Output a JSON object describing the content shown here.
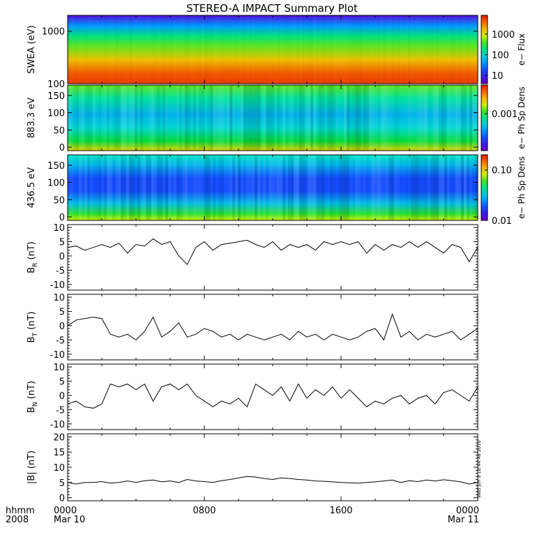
{
  "title": "STEREO-A IMPACT Summary Plot",
  "stamp": "Wed Jun  9 18:44:48 2010",
  "time_axis": {
    "labels": [
      "hhmm",
      "2008"
    ],
    "ticks": [
      {
        "hour": 0,
        "line1": "0000",
        "line2": "Mar 10"
      },
      {
        "hour": 8,
        "line1": "0800",
        "line2": ""
      },
      {
        "hour": 16,
        "line1": "1600",
        "line2": ""
      },
      {
        "hour": 24,
        "line1": "0000",
        "line2": "Mar 11"
      }
    ],
    "range_hours": [
      0,
      24
    ]
  },
  "spectrograms": [
    {
      "ylabel": "SWEA (eV)",
      "scale": "log",
      "ylim": [
        100,
        2000
      ],
      "ticks": [
        "100",
        "1000"
      ],
      "tick_values": [
        100,
        1000
      ],
      "colorbar": {
        "label": "e− Flux",
        "scale": "log",
        "ticks": [
          "10",
          "100",
          "1000"
        ],
        "tick_values": [
          10,
          100,
          1000
        ],
        "range": [
          4,
          8000
        ]
      }
    },
    {
      "ylabel": "883.3 eV",
      "scale": "linear",
      "ylim": [
        -10,
        180
      ],
      "ticks": [
        "0",
        "50",
        "100",
        "150"
      ],
      "tick_values": [
        0,
        50,
        100,
        150
      ],
      "colorbar": {
        "label": "e− Ph Sp Dens",
        "scale": "log",
        "ticks": [
          "0.001"
        ],
        "tick_values": [
          0.001
        ],
        "range": [
          0.0001,
          0.006
        ]
      }
    },
    {
      "ylabel": "436.5 eV",
      "scale": "linear",
      "ylim": [
        -10,
        180
      ],
      "ticks": [
        "0",
        "50",
        "100",
        "150"
      ],
      "tick_values": [
        0,
        50,
        100,
        150
      ],
      "colorbar": {
        "label": "e− Ph Sp Dens",
        "scale": "log",
        "ticks": [
          "0.01",
          "0.10"
        ],
        "tick_values": [
          0.01,
          0.1
        ],
        "range": [
          0.01,
          0.2
        ]
      }
    }
  ],
  "chart_data": [
    {
      "type": "line",
      "ylabel": "B_R (nT)",
      "ylabel_main": "B",
      "ylabel_sub": "R",
      "ylabel_unit": "(nT)",
      "ylim": [
        -12,
        11
      ],
      "yticks": [
        -10,
        -5,
        0,
        5,
        10
      ],
      "x_hours": [
        0,
        0.5,
        1,
        1.5,
        2,
        2.5,
        3,
        3.5,
        4,
        4.5,
        5,
        5.5,
        6,
        6.5,
        7,
        7.5,
        8,
        8.5,
        9,
        9.5,
        10,
        10.5,
        11,
        11.5,
        12,
        12.5,
        13,
        13.5,
        14,
        14.5,
        15,
        15.5,
        16,
        16.5,
        17,
        17.5,
        18,
        18.5,
        19,
        19.5,
        20,
        20.5,
        21,
        21.5,
        22,
        22.5,
        23,
        23.5,
        24
      ],
      "y": [
        3,
        3.5,
        2,
        3,
        4,
        3,
        4.5,
        1,
        4,
        3.5,
        6,
        4,
        5,
        0,
        -3,
        3,
        5,
        2,
        4,
        4.5,
        5,
        5.5,
        4,
        3,
        5,
        2,
        4,
        3,
        4,
        2,
        5,
        4,
        5,
        4,
        5,
        1,
        4,
        2,
        4,
        3,
        5,
        3,
        5,
        3,
        1,
        4,
        3,
        -2,
        3
      ]
    },
    {
      "type": "line",
      "ylabel": "B_T (nT)",
      "ylabel_main": "B",
      "ylabel_sub": "T",
      "ylabel_unit": "(nT)",
      "ylim": [
        -12,
        11
      ],
      "yticks": [
        -10,
        -5,
        0,
        5,
        10
      ],
      "x_hours": [
        0,
        0.5,
        1,
        1.5,
        2,
        2.5,
        3,
        3.5,
        4,
        4.5,
        5,
        5.5,
        6,
        6.5,
        7,
        7.5,
        8,
        8.5,
        9,
        9.5,
        10,
        10.5,
        11,
        11.5,
        12,
        12.5,
        13,
        13.5,
        14,
        14.5,
        15,
        15.5,
        16,
        16.5,
        17,
        17.5,
        18,
        18.5,
        19,
        19.5,
        20,
        20.5,
        21,
        21.5,
        22,
        22.5,
        23,
        23.5,
        24
      ],
      "y": [
        0,
        2,
        2.5,
        3,
        2.5,
        -3,
        -4,
        -3,
        -5,
        -2,
        3,
        -4,
        -2,
        1,
        -4,
        -3,
        -1,
        -2,
        -4,
        -3,
        -5,
        -3,
        -4,
        -5,
        -4,
        -3,
        -5,
        -2,
        -4,
        -3,
        -5,
        -3,
        -4,
        -5,
        -4,
        -2,
        -1,
        -5,
        4,
        -4,
        -2,
        -5,
        -3,
        -4,
        -3,
        -2,
        -5,
        -3,
        -1
      ]
    },
    {
      "type": "line",
      "ylabel": "B_N (nT)",
      "ylabel_main": "B",
      "ylabel_sub": "N",
      "ylabel_unit": "(nT)",
      "ylim": [
        -12,
        11
      ],
      "yticks": [
        -10,
        -5,
        0,
        5,
        10
      ],
      "x_hours": [
        0,
        0.5,
        1,
        1.5,
        2,
        2.5,
        3,
        3.5,
        4,
        4.5,
        5,
        5.5,
        6,
        6.5,
        7,
        7.5,
        8,
        8.5,
        9,
        9.5,
        10,
        10.5,
        11,
        11.5,
        12,
        12.5,
        13,
        13.5,
        14,
        14.5,
        15,
        15.5,
        16,
        16.5,
        17,
        17.5,
        18,
        18.5,
        19,
        19.5,
        20,
        20.5,
        21,
        21.5,
        22,
        22.5,
        23,
        23.5,
        24
      ],
      "y": [
        -3,
        -2,
        -4,
        -4.5,
        -3,
        4,
        3,
        4,
        2,
        4,
        -2,
        3,
        4,
        2,
        4,
        0,
        -2,
        -4,
        -2,
        -3,
        -1,
        -4,
        4,
        2,
        0,
        3,
        -2,
        4,
        -1,
        2,
        0,
        3,
        -1,
        2,
        -1,
        -4,
        -2,
        -3,
        -1,
        0,
        -3,
        -1,
        0,
        -3,
        1,
        2,
        0,
        -2,
        3
      ]
    },
    {
      "type": "line",
      "ylabel": "|B| (nT)",
      "ylabel_main": "|B|",
      "ylabel_sub": "",
      "ylabel_unit": "(nT)",
      "ylim": [
        -1,
        21
      ],
      "yticks": [
        0,
        5,
        10,
        15,
        20
      ],
      "x_hours": [
        0,
        0.5,
        1,
        1.5,
        2,
        2.5,
        3,
        3.5,
        4,
        4.5,
        5,
        5.5,
        6,
        6.5,
        7,
        7.5,
        8,
        8.5,
        9,
        9.5,
        10,
        10.5,
        11,
        11.5,
        12,
        12.5,
        13,
        13.5,
        14,
        14.5,
        15,
        15.5,
        16,
        16.5,
        17,
        17.5,
        18,
        18.5,
        19,
        19.5,
        20,
        20.5,
        21,
        21.5,
        22,
        22.5,
        23,
        23.5,
        24
      ],
      "y": [
        5,
        4.5,
        5,
        5,
        5.3,
        4.8,
        5,
        5.5,
        5,
        5.6,
        5.8,
        5.2,
        5.5,
        5,
        6,
        5.5,
        5.3,
        5,
        5.6,
        6,
        6.5,
        7,
        6.8,
        6.3,
        6,
        6.5,
        6.3,
        6,
        5.8,
        5.5,
        5.4,
        5.2,
        5,
        4.9,
        4.8,
        5,
        5.2,
        5.5,
        5.8,
        5,
        5.6,
        5.3,
        5.8,
        5.5,
        5.9,
        5.6,
        5.2,
        4.5,
        5
      ]
    }
  ]
}
